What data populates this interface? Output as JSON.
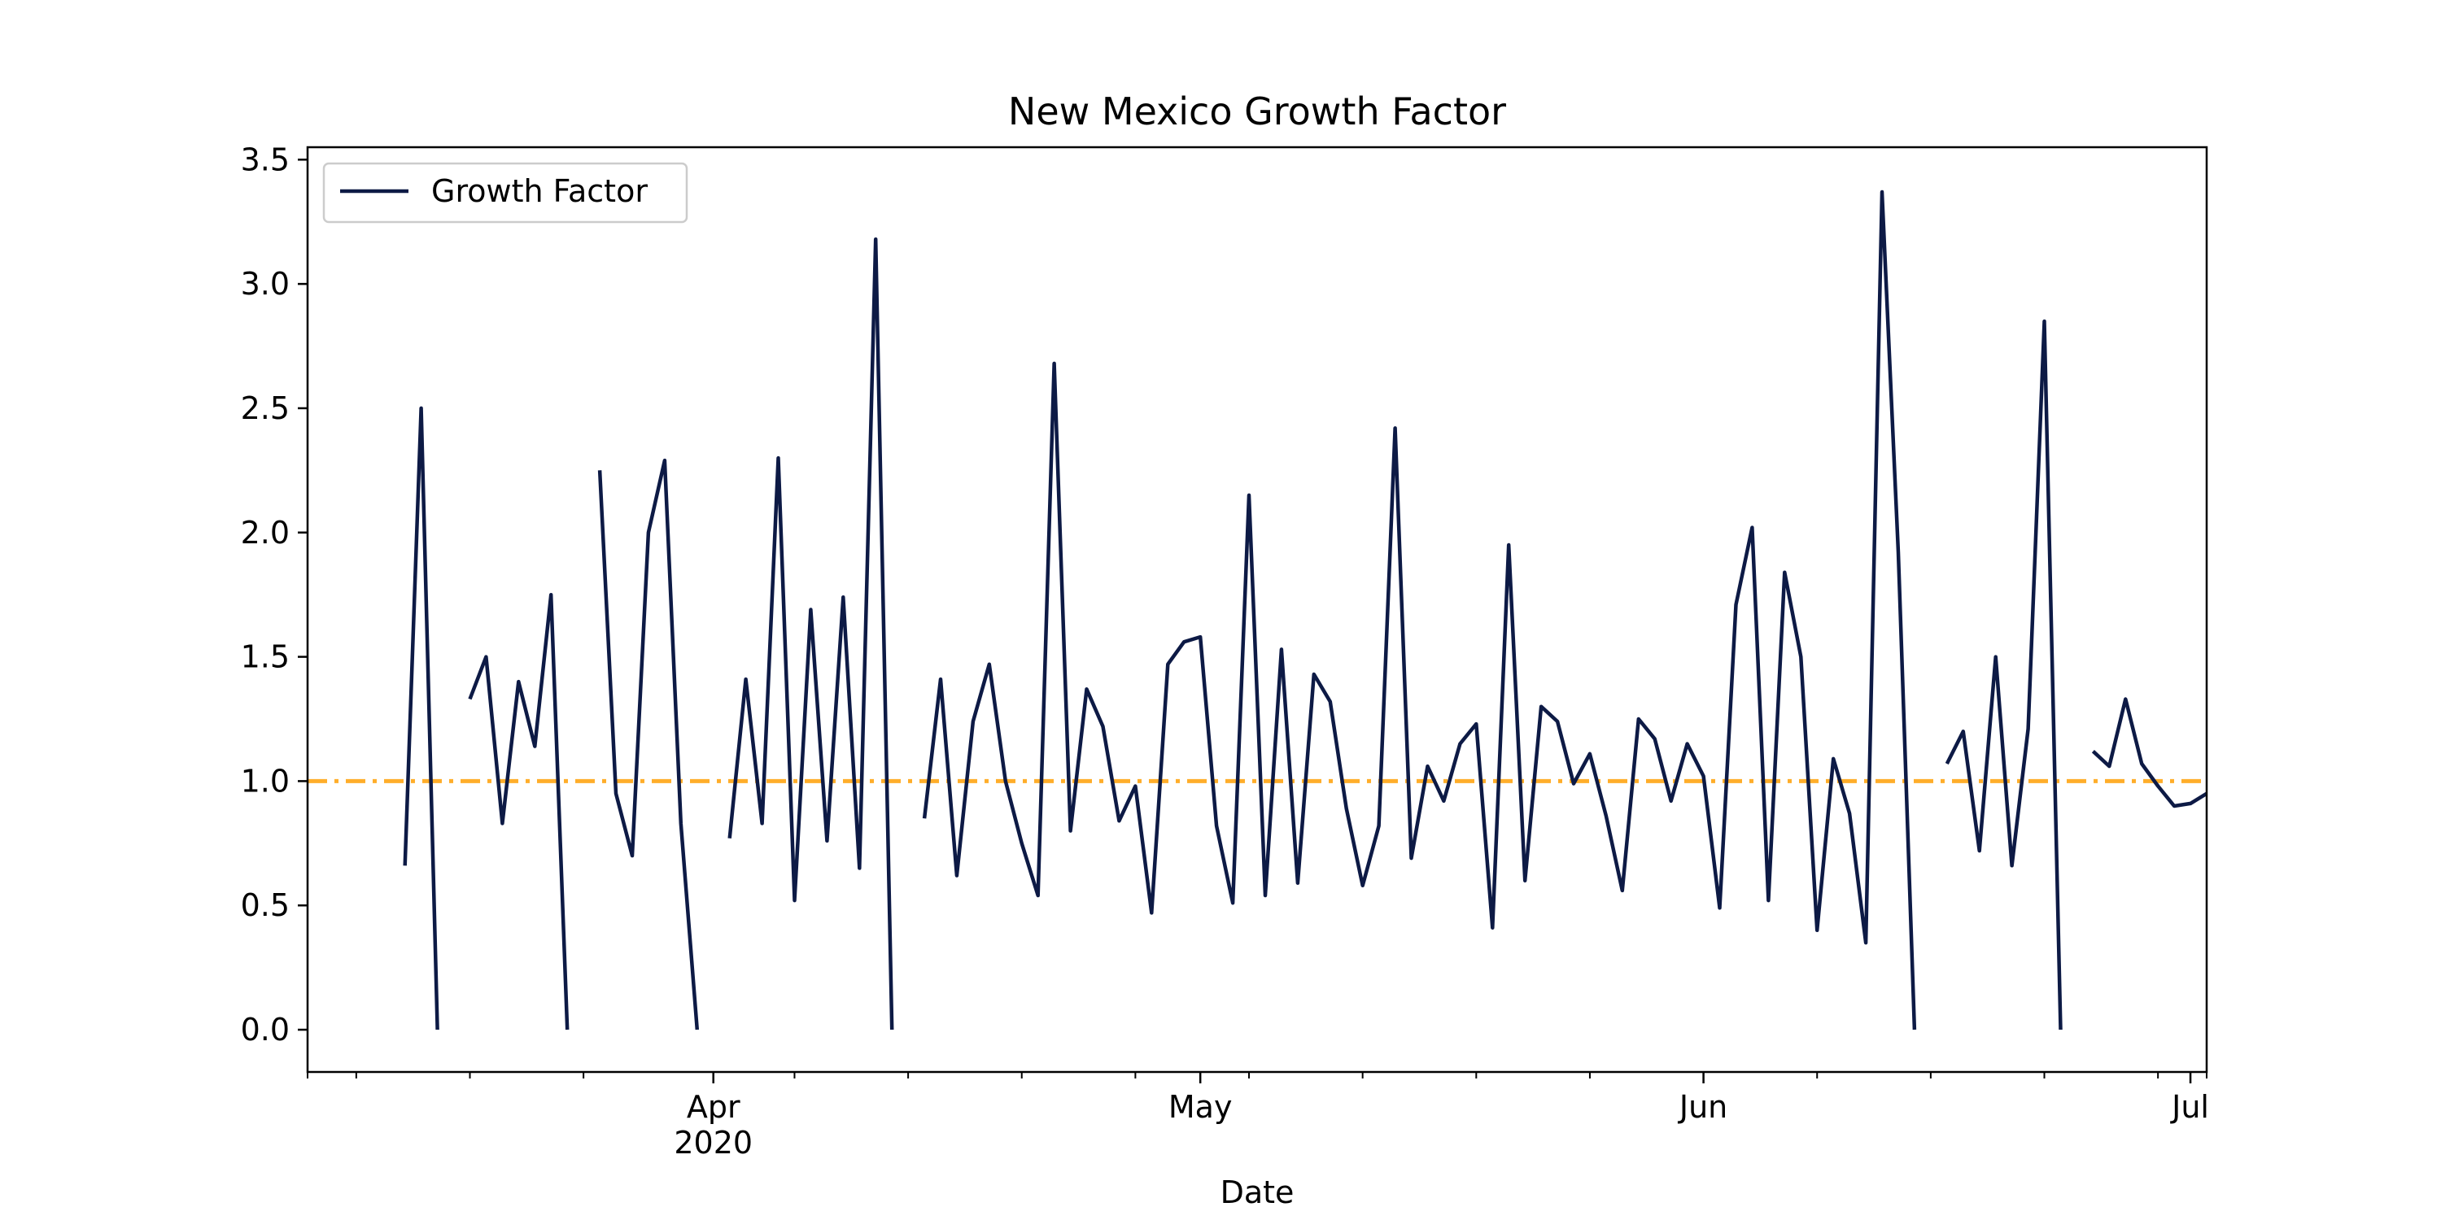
{
  "chart_data": {
    "type": "line",
    "title": "New Mexico Growth Factor",
    "xlabel": "Date",
    "ylabel": "",
    "x_start": "2020-03-07",
    "x_end": "2020-07-02",
    "xlim": [
      "2020-03-07",
      "2020-07-02"
    ],
    "ylim": [
      -0.17,
      3.55
    ],
    "y_ticks": [
      0.0,
      0.5,
      1.0,
      1.5,
      2.0,
      2.5,
      3.0,
      3.5
    ],
    "y_tick_labels": [
      "0.0",
      "0.5",
      "1.0",
      "1.5",
      "2.0",
      "2.5",
      "3.0",
      "3.5"
    ],
    "x_major_ticks": [
      {
        "date": "2020-04-01",
        "label": "Apr",
        "sublabel": "2020"
      },
      {
        "date": "2020-05-01",
        "label": "May",
        "sublabel": ""
      },
      {
        "date": "2020-06-01",
        "label": "Jun",
        "sublabel": ""
      },
      {
        "date": "2020-07-01",
        "label": "Jul",
        "sublabel": ""
      }
    ],
    "x_minor_ticks": [
      "2020-03-07",
      "2020-03-10",
      "2020-03-17",
      "2020-03-24",
      "2020-04-06",
      "2020-04-13",
      "2020-04-20",
      "2020-04-27",
      "2020-05-04",
      "2020-05-11",
      "2020-05-18",
      "2020-05-25",
      "2020-06-08",
      "2020-06-15",
      "2020-06-22",
      "2020-06-29",
      "2020-07-02"
    ],
    "grid": false,
    "legend": {
      "position": "top-left",
      "entries": [
        {
          "label": "Growth Factor",
          "color": "#0d1a45"
        }
      ]
    },
    "series": [
      {
        "name": "Growth Factor",
        "color": "#0d1a45",
        "x": [
          "2020-03-13",
          "2020-03-14",
          "2020-03-15",
          "2020-03-16",
          "2020-03-17",
          "2020-03-18",
          "2020-03-19",
          "2020-03-20",
          "2020-03-21",
          "2020-03-22",
          "2020-03-23",
          "2020-03-24",
          "2020-03-25",
          "2020-03-26",
          "2020-03-27",
          "2020-03-28",
          "2020-03-29",
          "2020-03-30",
          "2020-03-31",
          "2020-04-01",
          "2020-04-02",
          "2020-04-03",
          "2020-04-04",
          "2020-04-05",
          "2020-04-06",
          "2020-04-07",
          "2020-04-08",
          "2020-04-09",
          "2020-04-10",
          "2020-04-11",
          "2020-04-12",
          "2020-04-13",
          "2020-04-14",
          "2020-04-15",
          "2020-04-16",
          "2020-04-17",
          "2020-04-18",
          "2020-04-19",
          "2020-04-20",
          "2020-04-21",
          "2020-04-22",
          "2020-04-23",
          "2020-04-24",
          "2020-04-25",
          "2020-04-26",
          "2020-04-27",
          "2020-04-28",
          "2020-04-29",
          "2020-04-30",
          "2020-05-01",
          "2020-05-02",
          "2020-05-03",
          "2020-05-04",
          "2020-05-05",
          "2020-05-06",
          "2020-05-07",
          "2020-05-08",
          "2020-05-09",
          "2020-05-10",
          "2020-05-11",
          "2020-05-12",
          "2020-05-13",
          "2020-05-14",
          "2020-05-15",
          "2020-05-16",
          "2020-05-17",
          "2020-05-18",
          "2020-05-19",
          "2020-05-20",
          "2020-05-21",
          "2020-05-22",
          "2020-05-23",
          "2020-05-24",
          "2020-05-25",
          "2020-05-26",
          "2020-05-27",
          "2020-05-28",
          "2020-05-29",
          "2020-05-30",
          "2020-05-31",
          "2020-06-01",
          "2020-06-02",
          "2020-06-03",
          "2020-06-04",
          "2020-06-05",
          "2020-06-06",
          "2020-06-07",
          "2020-06-08",
          "2020-06-09",
          "2020-06-10",
          "2020-06-11",
          "2020-06-12",
          "2020-06-13",
          "2020-06-14",
          "2020-06-15",
          "2020-06-16",
          "2020-06-17",
          "2020-06-18",
          "2020-06-19",
          "2020-06-20",
          "2020-06-21",
          "2020-06-22",
          "2020-06-23",
          "2020-06-24",
          "2020-06-25",
          "2020-06-26",
          "2020-06-27",
          "2020-06-28",
          "2020-06-29",
          "2020-06-30",
          "2020-07-01",
          "2020-07-02"
        ],
        "y": [
          0.66,
          2.5,
          0.0,
          null,
          1.33,
          1.5,
          0.83,
          1.4,
          1.14,
          1.75,
          0.0,
          null,
          2.25,
          0.95,
          0.7,
          2.0,
          2.29,
          0.83,
          0.0,
          null,
          0.77,
          1.41,
          0.83,
          2.3,
          0.52,
          1.69,
          0.76,
          1.74,
          0.65,
          3.18,
          0.0,
          null,
          0.85,
          1.41,
          0.62,
          1.24,
          1.47,
          1.0,
          0.75,
          0.54,
          2.68,
          0.8,
          1.37,
          1.22,
          0.84,
          0.98,
          0.47,
          1.47,
          1.56,
          1.58,
          0.82,
          0.51,
          2.15,
          0.54,
          1.53,
          0.59,
          1.43,
          1.32,
          0.89,
          0.58,
          0.82,
          2.42,
          0.69,
          1.06,
          0.92,
          1.15,
          1.23,
          0.41,
          1.95,
          0.6,
          1.3,
          1.24,
          0.99,
          1.11,
          0.86,
          0.56,
          1.25,
          1.17,
          0.92,
          1.15,
          1.02,
          0.49,
          1.71,
          2.02,
          0.52,
          1.84,
          1.5,
          0.4,
          1.09,
          0.87,
          0.35,
          3.37,
          1.92,
          0.0,
          null,
          1.07,
          1.2,
          0.72,
          1.5,
          0.66,
          1.21,
          2.85,
          0.0,
          null,
          1.12,
          1.06,
          1.33,
          1.07,
          0.98,
          0.9,
          0.91,
          0.95
        ]
      }
    ],
    "reference_line": {
      "y": 1.0,
      "color": "#ffae2b",
      "style": "dash-dot"
    },
    "colors": {
      "line": "#0d1a45",
      "reference": "#ffae2b",
      "axes": "#000000",
      "legend_border": "#cccccc"
    }
  }
}
